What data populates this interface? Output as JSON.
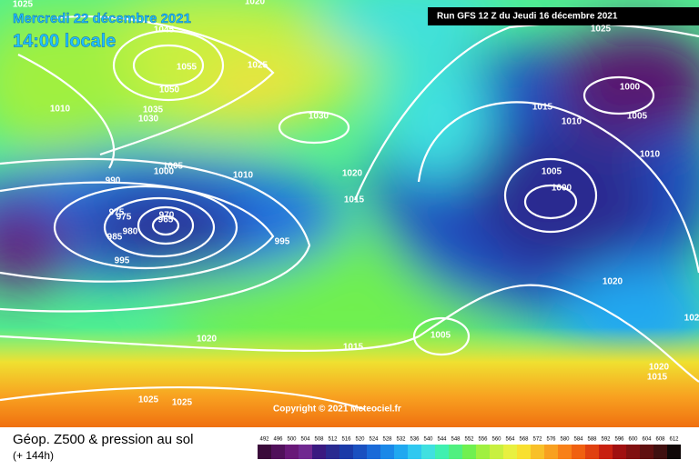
{
  "header": {
    "date": "Mercredi 22 décembre 2021",
    "time": "14:00 locale",
    "run": "Run GFS 12 Z du Jeudi 16 décembre 2021"
  },
  "copyright": "Copyright © 2021 Meteociel.fr",
  "isobar_labels": [
    "1025",
    "1020",
    "1045",
    "1055",
    "1050",
    "1025",
    "1035",
    "1030",
    "1010",
    "1030",
    "1005",
    "1000",
    "990",
    "1010",
    "1020",
    "1015",
    "975",
    "975",
    "970",
    "980",
    "985",
    "965",
    "995",
    "995",
    "1020",
    "1015",
    "1025",
    "1025",
    "1005",
    "1025",
    "1015",
    "1010",
    "1000",
    "1005",
    "1005",
    "1000",
    "1010",
    "1020",
    "1020",
    "1015",
    "102"
  ],
  "footer": {
    "title": "Géop. Z500 & pression au sol",
    "subtitle": "(+ 144h)"
  },
  "scale": {
    "labels": [
      492,
      496,
      500,
      504,
      508,
      512,
      516,
      520,
      524,
      528,
      532,
      536,
      540,
      544,
      548,
      552,
      556,
      560,
      564,
      568,
      572,
      576,
      580,
      584,
      588,
      592,
      596,
      600,
      604,
      608,
      612
    ],
    "colors": [
      "#3a0a3a",
      "#50105a",
      "#681878",
      "#702890",
      "#3a1a80",
      "#2a2a90",
      "#1a3aa8",
      "#1a50c0",
      "#1a6ad8",
      "#1a88e8",
      "#20a8f0",
      "#30c8f0",
      "#40e0e0",
      "#40f0b0",
      "#50f080",
      "#70f050",
      "#a0f040",
      "#c8f040",
      "#e8f040",
      "#f8e030",
      "#f8c028",
      "#f8a020",
      "#f88018",
      "#f06010",
      "#e04010",
      "#c82010",
      "#a01010",
      "#801010",
      "#601010",
      "#401010",
      "#100808"
    ]
  }
}
